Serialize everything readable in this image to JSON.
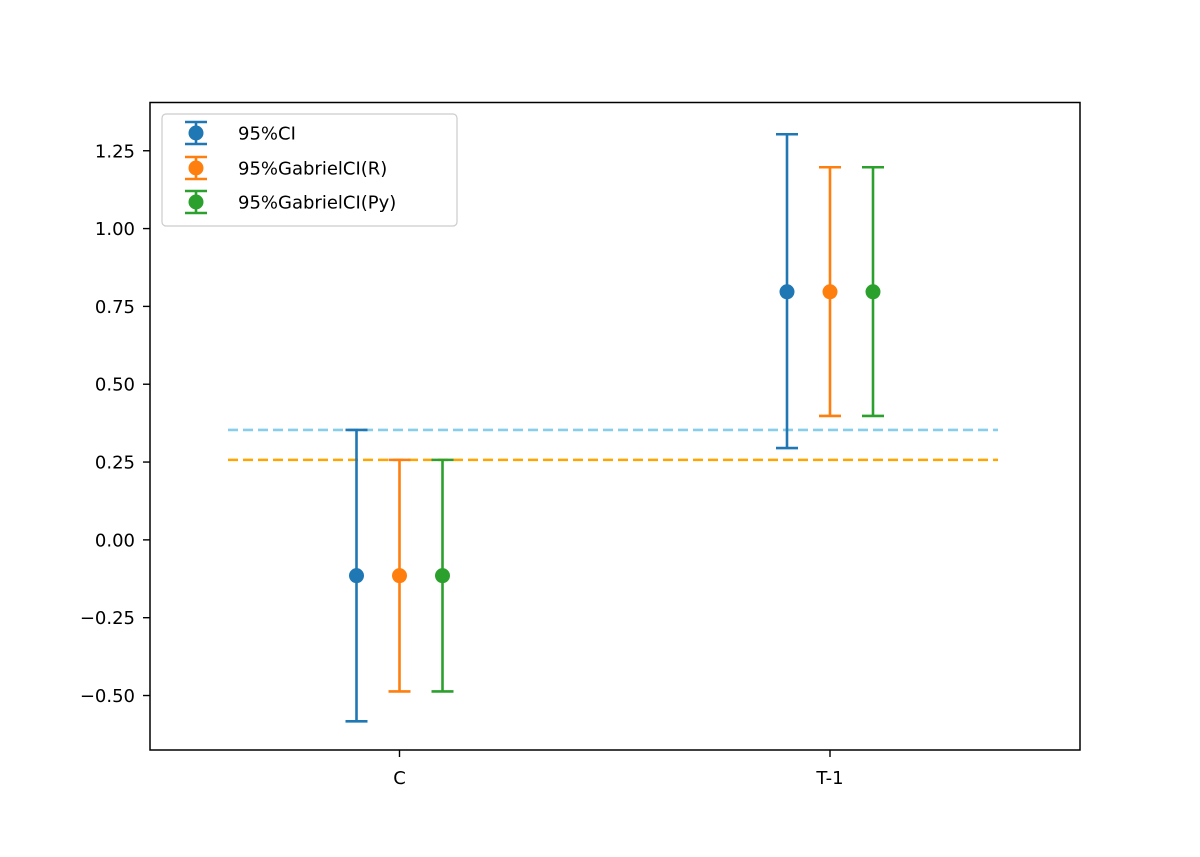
{
  "chart_data": {
    "type": "errorbar",
    "title": "",
    "xlabel": "",
    "ylabel": "",
    "categories": [
      "C",
      "T-1"
    ],
    "ylim": [
      -0.675,
      1.405
    ],
    "yticks": [
      -0.5,
      -0.25,
      0.0,
      0.25,
      0.5,
      0.75,
      1.0,
      1.25
    ],
    "ytick_labels": [
      "−0.50",
      "−0.25",
      "0.00",
      "0.25",
      "0.50",
      "0.75",
      "1.00",
      "1.25"
    ],
    "grid": false,
    "legend_position": "upper-left",
    "series": [
      {
        "name": "95%CI",
        "color": "#1f77b4",
        "points": [
          {
            "category": "C",
            "value": -0.115,
            "lower": -0.583,
            "upper": 0.353
          },
          {
            "category": "T-1",
            "value": 0.797,
            "lower": 0.295,
            "upper": 1.303
          }
        ]
      },
      {
        "name": "95%GabrielCI(R)",
        "color": "#ff7f0e",
        "points": [
          {
            "category": "C",
            "value": -0.115,
            "lower": -0.487,
            "upper": 0.257
          },
          {
            "category": "T-1",
            "value": 0.797,
            "lower": 0.398,
            "upper": 1.197
          }
        ]
      },
      {
        "name": "95%GabrielCI(Py)",
        "color": "#2ca02c",
        "points": [
          {
            "category": "C",
            "value": -0.115,
            "lower": -0.487,
            "upper": 0.257
          },
          {
            "category": "T-1",
            "value": 0.797,
            "lower": 0.398,
            "upper": 1.197
          }
        ]
      }
    ],
    "reference_lines": [
      {
        "y": 0.353,
        "color": "#87ceeb",
        "style": "dashed"
      },
      {
        "y": 0.257,
        "color": "#ffa500",
        "style": "dashed"
      }
    ]
  }
}
